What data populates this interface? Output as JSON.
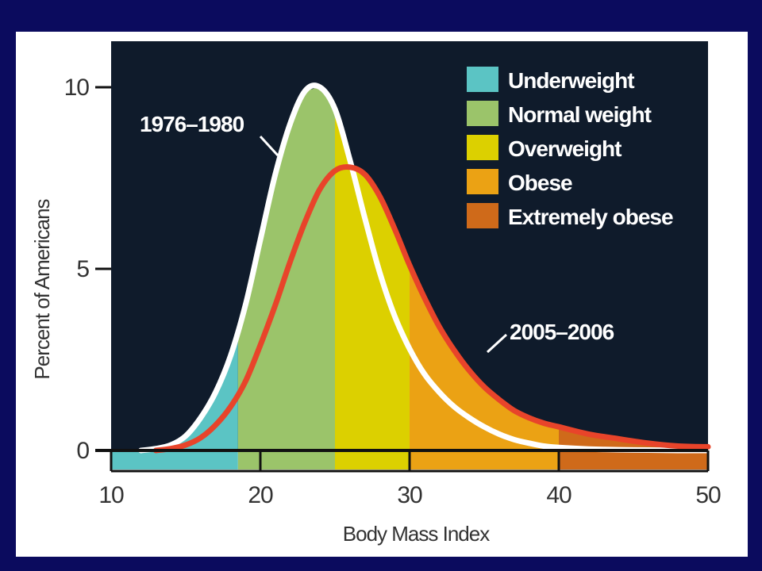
{
  "chart_data": {
    "type": "line",
    "xlabel": "Body Mass Index",
    "ylabel": "Percent of Americans",
    "xlim": [
      10,
      50
    ],
    "ylim": [
      0,
      10
    ],
    "x_ticks": [
      "10",
      "20",
      "30",
      "40",
      "50"
    ],
    "y_ticks": [
      "0",
      "5",
      "10"
    ],
    "categories": [
      {
        "name": "Underweight",
        "from": 10,
        "to": 18.5,
        "color": "#5bc4c4"
      },
      {
        "name": "Normal weight",
        "from": 18.5,
        "to": 25,
        "color": "#9bc46a"
      },
      {
        "name": "Overweight",
        "from": 25,
        "to": 30,
        "color": "#dcd000"
      },
      {
        "name": "Obese",
        "from": 30,
        "to": 40,
        "color": "#eba214"
      },
      {
        "name": "Extremely obese",
        "from": 40,
        "to": 50,
        "color": "#cf6a1a"
      }
    ],
    "series": [
      {
        "name": "1976–1980",
        "color": "#ffffff",
        "x": [
          12,
          13,
          14,
          15,
          16,
          17,
          18,
          19,
          20,
          21,
          22,
          23,
          24,
          25,
          26,
          27,
          28,
          29,
          30,
          31,
          32,
          33,
          34,
          35,
          36,
          37,
          38,
          39,
          40,
          42,
          44,
          46,
          48,
          50
        ],
        "y": [
          0.0,
          0.05,
          0.15,
          0.4,
          0.9,
          1.6,
          2.6,
          4.0,
          5.8,
          7.6,
          9.0,
          9.9,
          10.0,
          9.4,
          8.0,
          6.4,
          4.9,
          3.7,
          2.8,
          2.1,
          1.6,
          1.2,
          0.9,
          0.65,
          0.45,
          0.3,
          0.2,
          0.12,
          0.08,
          0.04,
          0.02,
          0.01,
          0.0,
          0.0
        ]
      },
      {
        "name": "2005–2006",
        "color": "#e8442a",
        "x": [
          13,
          14,
          15,
          16,
          17,
          18,
          19,
          20,
          21,
          22,
          23,
          24,
          25,
          26,
          27,
          28,
          29,
          30,
          31,
          32,
          33,
          34,
          35,
          36,
          37,
          38,
          39,
          40,
          42,
          44,
          46,
          48,
          50
        ],
        "y": [
          0.0,
          0.05,
          0.15,
          0.35,
          0.7,
          1.2,
          1.9,
          2.9,
          4.0,
          5.2,
          6.3,
          7.2,
          7.7,
          7.8,
          7.6,
          7.0,
          6.1,
          5.1,
          4.2,
          3.4,
          2.75,
          2.2,
          1.75,
          1.4,
          1.1,
          0.9,
          0.75,
          0.65,
          0.45,
          0.32,
          0.2,
          0.12,
          0.1
        ]
      }
    ],
    "legend_position": "top-right",
    "grid": false
  }
}
